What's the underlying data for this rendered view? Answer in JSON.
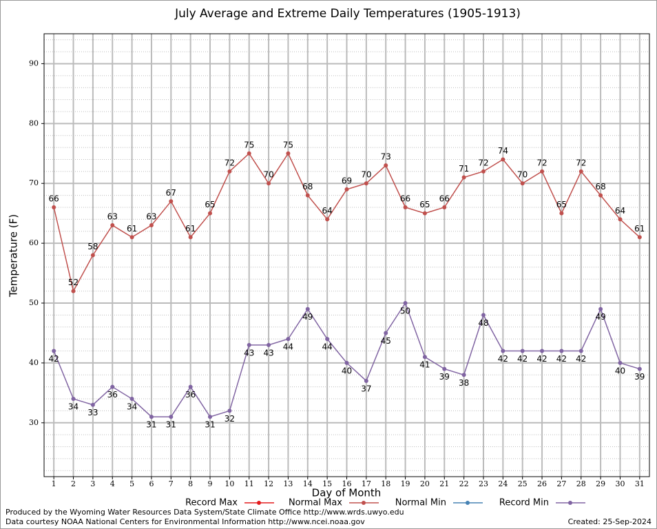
{
  "chart_data": {
    "type": "line",
    "title": "July Average and Extreme Daily Temperatures (1905-1913)",
    "x_label": "Day of Month",
    "y_label": "Temperature (F)",
    "x": [
      1,
      2,
      3,
      4,
      5,
      6,
      7,
      8,
      9,
      10,
      11,
      12,
      13,
      14,
      15,
      16,
      17,
      18,
      19,
      20,
      21,
      22,
      23,
      24,
      25,
      26,
      27,
      28,
      29,
      30,
      31
    ],
    "xlim": [
      0.5,
      31.5
    ],
    "xticks": [
      1,
      2,
      3,
      4,
      5,
      6,
      7,
      8,
      9,
      10,
      11,
      12,
      13,
      14,
      15,
      16,
      17,
      18,
      19,
      20,
      21,
      22,
      23,
      24,
      25,
      26,
      27,
      28,
      29,
      30,
      31
    ],
    "ylim": [
      21,
      95
    ],
    "yticks": [
      30,
      40,
      50,
      60,
      70,
      80,
      90
    ],
    "grid": true,
    "minor_grid": true,
    "series": [
      {
        "name": "Record Max",
        "color": "#e41a1c",
        "values": [
          null,
          null,
          null,
          null,
          null,
          null,
          null,
          null,
          null,
          null,
          null,
          null,
          null,
          null,
          null,
          null,
          null,
          null,
          null,
          null,
          null,
          null,
          null,
          null,
          null,
          null,
          null,
          null,
          null,
          null,
          null
        ]
      },
      {
        "name": "Normal Max",
        "color": "#c0504d",
        "values": [
          66,
          52,
          58,
          63,
          61,
          63,
          67,
          61,
          65,
          72,
          75,
          70,
          75,
          68,
          64,
          69,
          70,
          73,
          66,
          65,
          66,
          71,
          72,
          74,
          70,
          72,
          65,
          72,
          68,
          64,
          61
        ]
      },
      {
        "name": "Normal Min",
        "color": "#4682b4",
        "values": [
          null,
          null,
          null,
          null,
          null,
          null,
          null,
          null,
          null,
          null,
          null,
          null,
          null,
          null,
          null,
          null,
          null,
          null,
          null,
          null,
          null,
          null,
          null,
          null,
          null,
          null,
          null,
          null,
          null,
          null,
          null
        ]
      },
      {
        "name": "Record Min",
        "color": "#8064a2",
        "values": [
          42,
          34,
          33,
          36,
          34,
          31,
          31,
          36,
          31,
          32,
          43,
          43,
          44,
          49,
          44,
          40,
          37,
          45,
          50,
          41,
          39,
          38,
          48,
          42,
          42,
          42,
          42,
          42,
          49,
          40,
          39
        ]
      }
    ],
    "footer_left": [
      "Produced by the Wyoming Water Resources Data System/State Climate Office http://www.wrds.uwyo.edu",
      "Data courtesy NOAA National Centers for Environmental Information http://www.ncei.noaa.gov"
    ],
    "footer_right": "Created:  25-Sep-2024"
  }
}
